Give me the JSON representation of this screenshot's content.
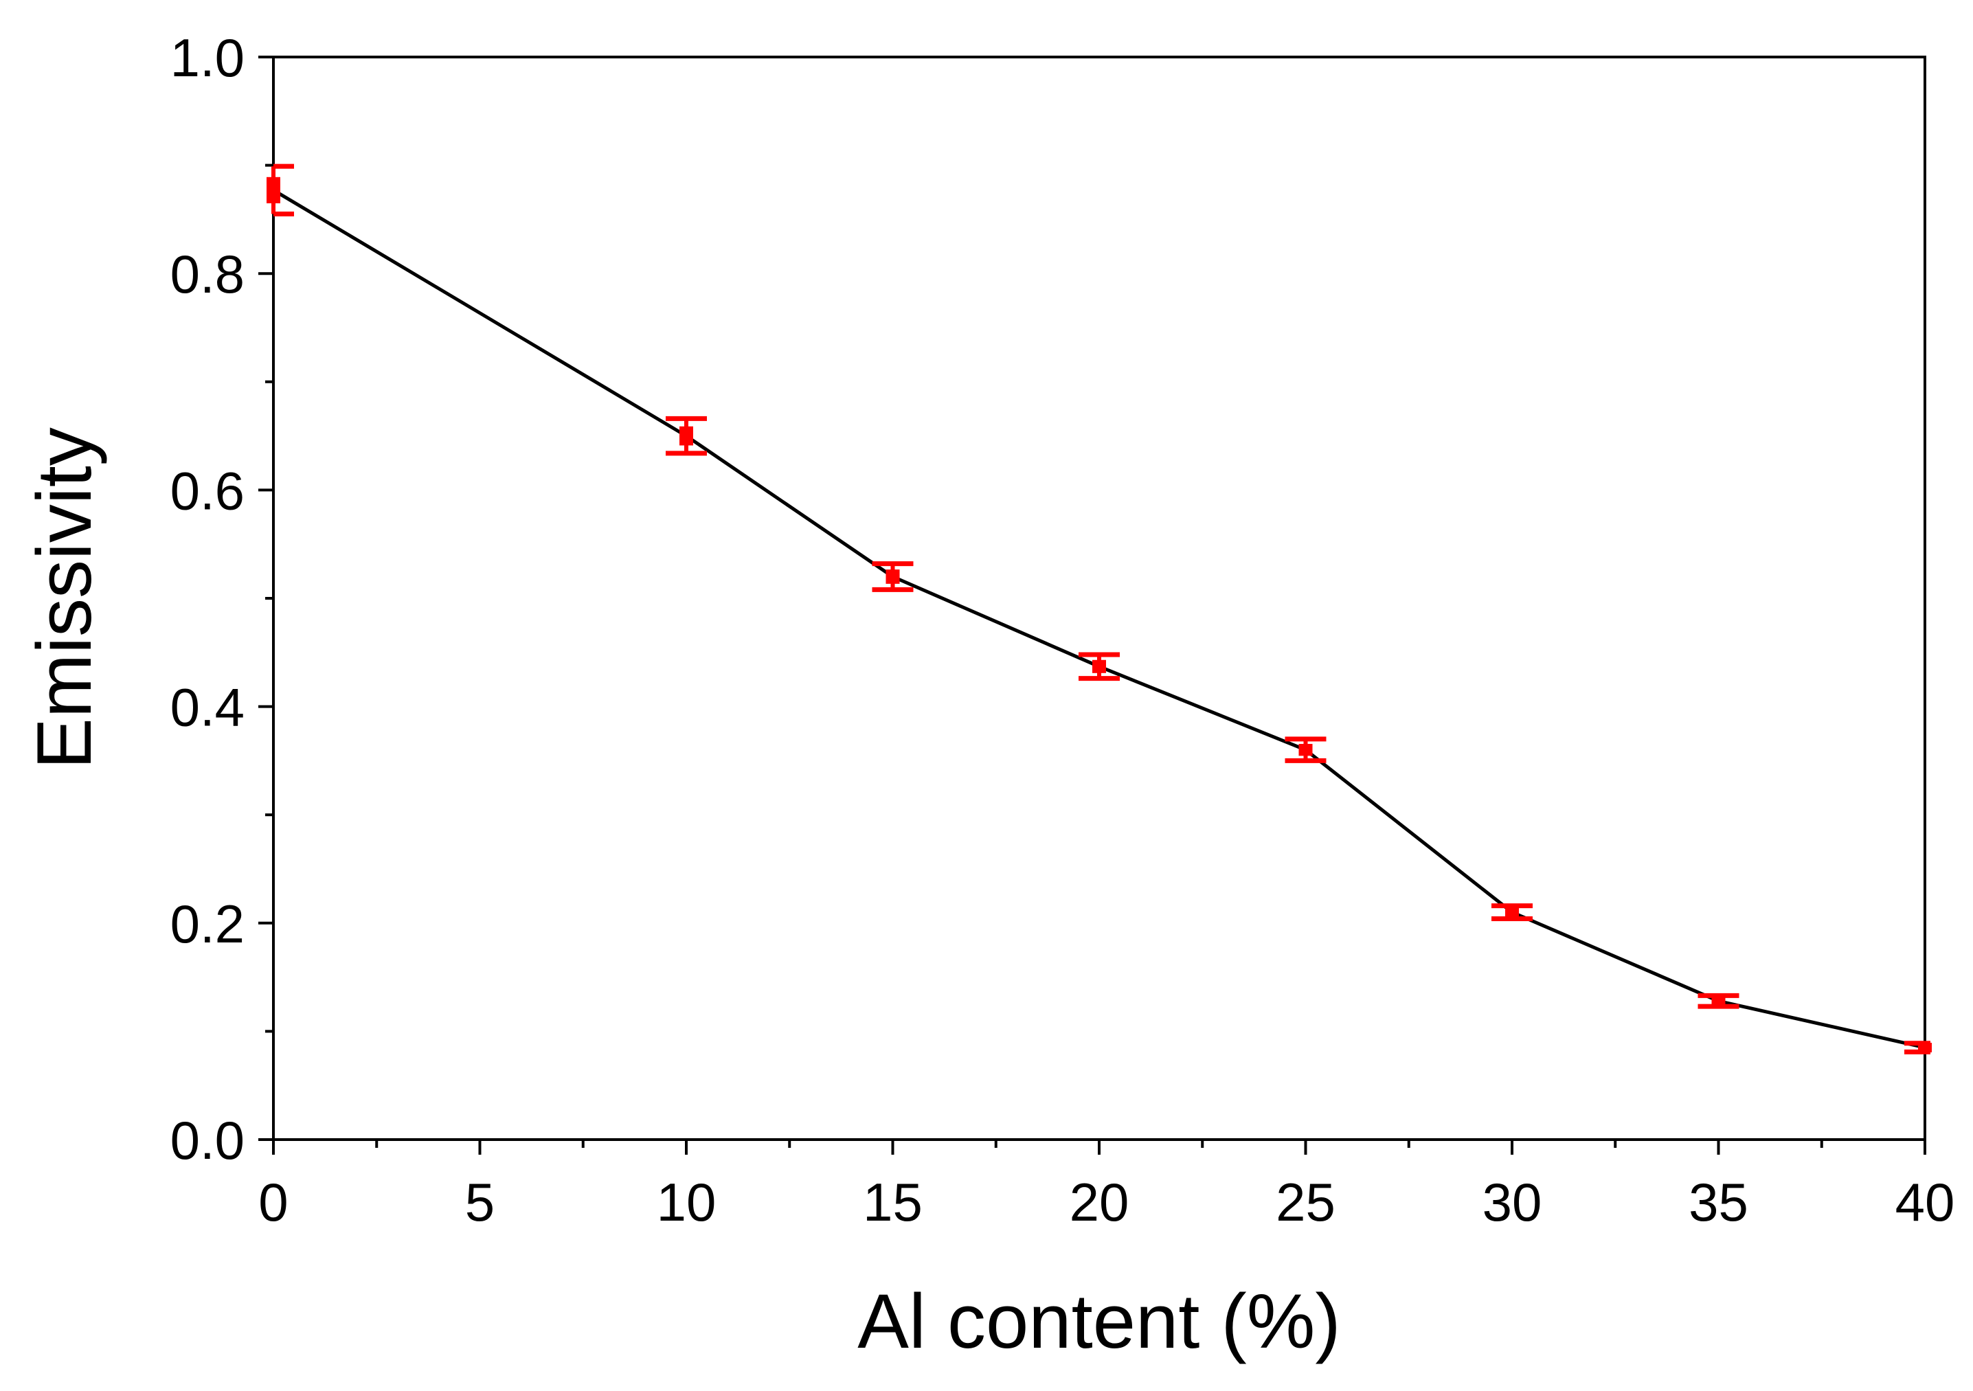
{
  "chart_data": {
    "type": "line",
    "title": "",
    "xlabel": "Al content (%)",
    "ylabel": "Emissivity",
    "xlim": [
      0,
      40
    ],
    "ylim": [
      0.0,
      1.0
    ],
    "xticks": [
      0,
      5,
      10,
      15,
      20,
      25,
      30,
      35,
      40
    ],
    "yticks": [
      0.0,
      0.2,
      0.4,
      0.6,
      0.8,
      1.0
    ],
    "xtick_labels": [
      "0",
      "5",
      "10",
      "15",
      "20",
      "25",
      "30",
      "35",
      "40"
    ],
    "ytick_labels": [
      "0.0",
      "0.2",
      "0.4",
      "0.6",
      "0.8",
      "1.0"
    ],
    "grid": false,
    "series": [
      {
        "x": [
          0,
          10,
          15,
          20,
          25,
          30,
          35,
          40
        ],
        "y": [
          0.877,
          0.65,
          0.52,
          0.437,
          0.36,
          0.21,
          0.128,
          0.085
        ],
        "y_err": [
          0.022,
          0.016,
          0.012,
          0.011,
          0.01,
          0.006,
          0.005,
          0.004
        ],
        "line_color": "#000000",
        "marker_color": "#ff0000"
      }
    ]
  }
}
